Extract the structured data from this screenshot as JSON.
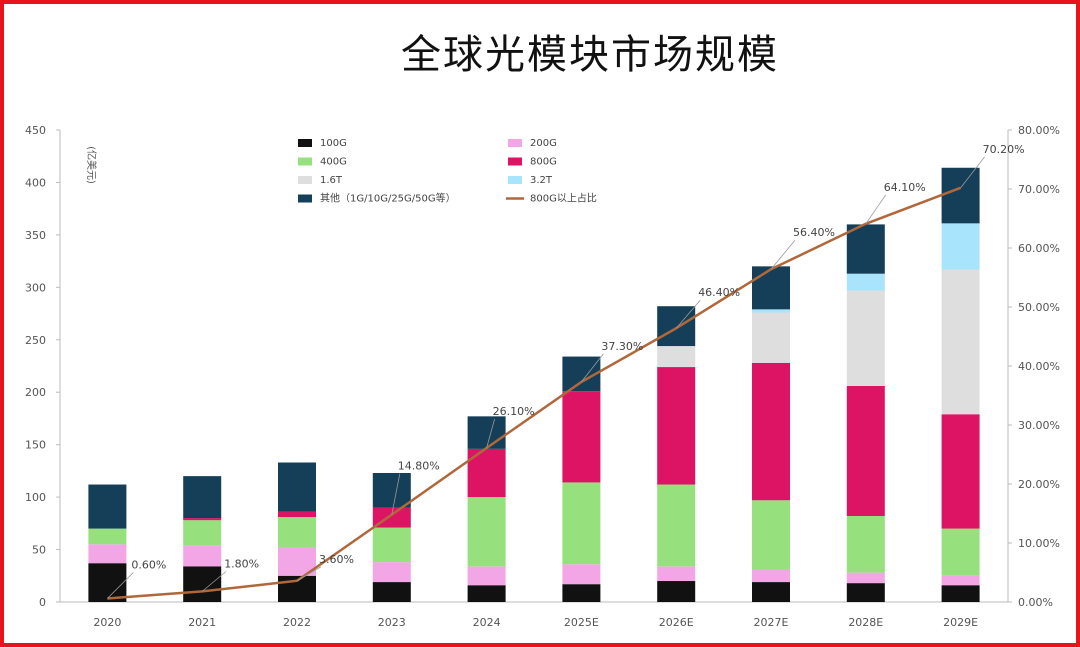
{
  "chart_data": {
    "type": "bar",
    "title": "全球光模块市场规模",
    "ylabel": "(亿美元)",
    "ylim": [
      0,
      450
    ],
    "y2lim": [
      0,
      80
    ],
    "yticks": [
      "0",
      "50",
      "100",
      "150",
      "200",
      "250",
      "300",
      "350",
      "400",
      "450"
    ],
    "y2ticks": [
      "0.00%",
      "10.00%",
      "20.00%",
      "30.00%",
      "40.00%",
      "50.00%",
      "60.00%",
      "70.00%",
      "80.00%"
    ],
    "categories": [
      "2020",
      "2021",
      "2022",
      "2023",
      "2024",
      "2025E",
      "2026E",
      "2027E",
      "2028E",
      "2029E"
    ],
    "series": [
      {
        "name": "100G",
        "color": "#111111",
        "values": [
          37,
          34,
          25,
          19,
          16,
          17,
          20,
          19,
          18,
          16
        ]
      },
      {
        "name": "200G",
        "color": "#f2a6e6",
        "values": [
          18,
          20,
          27,
          19,
          18,
          19,
          14,
          12,
          10,
          9
        ]
      },
      {
        "name": "400G",
        "color": "#96e07e",
        "values": [
          15,
          24,
          29,
          33,
          66,
          78,
          78,
          66,
          54,
          45
        ]
      },
      {
        "name": "800G",
        "color": "#dc1463",
        "values": [
          0,
          2,
          5,
          19,
          46,
          87,
          112,
          131,
          124,
          109
        ]
      },
      {
        "name": "1.6T",
        "color": "#dedede",
        "values": [
          0,
          0,
          0,
          0,
          0,
          0,
          20,
          48,
          91,
          138
        ]
      },
      {
        "name": "3.2T",
        "color": "#a8e4fb",
        "values": [
          0,
          0,
          0,
          0,
          0,
          0,
          0,
          3,
          16,
          44
        ]
      },
      {
        "name": "其他（1G/10G/25G/50G等）",
        "color": "#153f58",
        "values": [
          42,
          40,
          47,
          33,
          31,
          33,
          38,
          41,
          47,
          53
        ]
      }
    ],
    "line": {
      "name": "800G以上占比",
      "color": "#b0683a",
      "values": [
        0.6,
        1.8,
        3.6,
        14.8,
        26.1,
        37.3,
        46.4,
        56.4,
        64.1,
        70.2
      ],
      "labels": [
        "0.60%",
        "1.80%",
        "3.60%",
        "14.80%",
        "26.10%",
        "37.30%",
        "46.40%",
        "56.40%",
        "64.10%",
        "70.20%"
      ]
    },
    "legend_position": "top-center",
    "grid": false
  }
}
